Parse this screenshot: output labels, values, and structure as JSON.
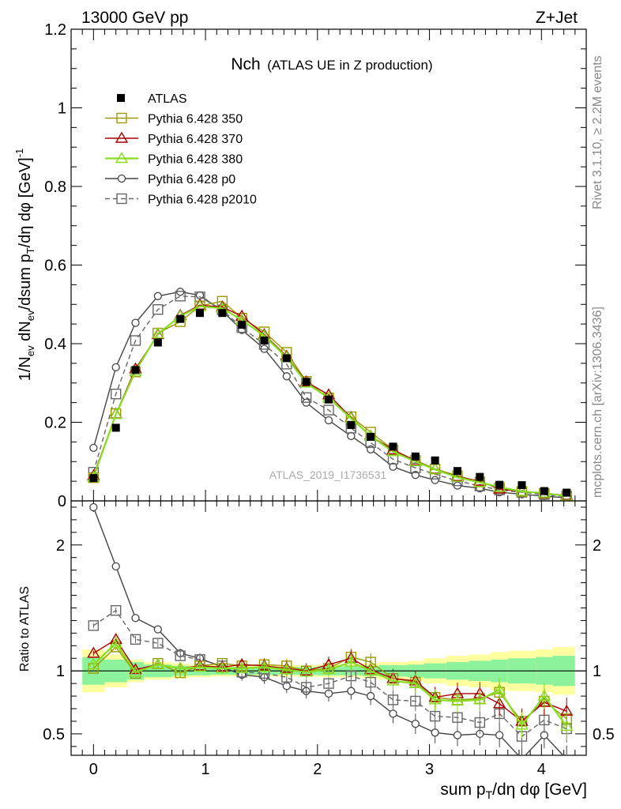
{
  "header": {
    "left": "13000 GeV pp",
    "right": "Z+Jet"
  },
  "side": {
    "rivet": "Rivet 3.1.10, ≥ 2.2M events",
    "mcplots": "mcplots.cern.ch [arXiv:1306.3436]"
  },
  "watermark": "ATLAS_2019_I1736531",
  "chart_data": {
    "type": "line",
    "title": "Nch",
    "subtitle": "(ATLAS UE in Z production)",
    "xlabel": "sum p_T/dη dφ [GeV]",
    "ylabel": "1/N_ev dN_ev/dsum p_T/dη dφ [GeV]^-1",
    "ratio_ylabel": "Ratio to ATLAS",
    "xlim": [
      -0.2,
      4.4
    ],
    "ylim": [
      0,
      1.2
    ],
    "ratio_ylim": [
      0.33,
      2.35
    ],
    "x_ticks": [
      "0",
      "1",
      "2",
      "3",
      "4"
    ],
    "y_ticks": [
      "0",
      "0.2",
      "0.4",
      "0.6",
      "0.8",
      "1",
      "1.2"
    ],
    "ratio_ticks": [
      "0.5",
      "1",
      "2"
    ],
    "legend_position": "top-left",
    "x": [
      0,
      0.2,
      0.375,
      0.575,
      0.775,
      0.95,
      1.15,
      1.325,
      1.525,
      1.725,
      1.9,
      2.1,
      2.3,
      2.475,
      2.675,
      2.875,
      3.05,
      3.25,
      3.45,
      3.625,
      3.825,
      4.025,
      4.225
    ],
    "band_edges": [
      -0.1,
      0.1,
      0.3,
      0.45,
      0.7,
      0.85,
      1.05,
      1.25,
      1.4,
      1.65,
      1.8,
      2.0,
      2.2,
      2.4,
      2.55,
      2.8,
      2.95,
      3.15,
      3.35,
      3.55,
      3.7,
      3.95,
      4.1,
      4.3
    ],
    "band_inner_half": [
      0.11,
      0.09,
      0.07,
      0.05,
      0.04,
      0.035,
      0.03,
      0.03,
      0.03,
      0.03,
      0.03,
      0.035,
      0.035,
      0.04,
      0.045,
      0.05,
      0.06,
      0.07,
      0.08,
      0.09,
      0.1,
      0.11,
      0.12
    ],
    "band_outer_half": [
      0.17,
      0.13,
      0.09,
      0.07,
      0.06,
      0.05,
      0.045,
      0.045,
      0.045,
      0.045,
      0.045,
      0.05,
      0.05,
      0.06,
      0.07,
      0.08,
      0.1,
      0.12,
      0.13,
      0.15,
      0.16,
      0.17,
      0.19
    ],
    "series": [
      {
        "name": "ATLAS",
        "style": "data",
        "color": "#000000",
        "marker": "filled-square",
        "values": [
          0.058,
          0.186,
          0.333,
          0.403,
          0.463,
          0.478,
          0.478,
          0.448,
          0.408,
          0.363,
          0.303,
          0.258,
          0.193,
          0.163,
          0.138,
          0.113,
          0.103,
          0.076,
          0.061,
          0.041,
          0.04,
          0.025,
          0.021
        ]
      },
      {
        "name": "Pythia 6.428 350",
        "style": "solid",
        "color": "#999900",
        "marker": "open-square",
        "values": [
          0.059,
          0.222,
          0.328,
          0.427,
          0.456,
          0.496,
          0.508,
          0.465,
          0.43,
          0.378,
          0.304,
          0.262,
          0.214,
          0.175,
          0.13,
          0.103,
          0.081,
          0.064,
          0.048,
          0.034,
          0.024,
          0.019,
          0.013
        ],
        "ratio": [
          1.02,
          1.19,
          0.98,
          1.06,
          0.985,
          1.04,
          1.06,
          1.04,
          1.05,
          1.04,
          1.0,
          1.02,
          1.11,
          1.07,
          0.94,
          0.91,
          0.79,
          0.77,
          0.78,
          0.83,
          0.6,
          0.76,
          0.62
        ]
      },
      {
        "name": "Pythia 6.428 370",
        "style": "solid",
        "color": "#aa0000",
        "marker": "open-triangle",
        "values": [
          0.064,
          0.221,
          0.336,
          0.423,
          0.472,
          0.498,
          0.493,
          0.47,
          0.423,
          0.368,
          0.303,
          0.27,
          0.212,
          0.165,
          0.13,
          0.102,
          0.081,
          0.062,
          0.05,
          0.03,
          0.024,
          0.019,
          0.014
        ],
        "ratio": [
          1.14,
          1.25,
          1.01,
          1.05,
          1.02,
          1.04,
          1.03,
          1.05,
          1.04,
          1.02,
          1.0,
          1.05,
          1.1,
          1.01,
          0.94,
          0.92,
          0.79,
          0.82,
          0.82,
          0.74,
          0.6,
          0.75,
          0.68
        ]
      },
      {
        "name": "Pythia 6.428 380",
        "style": "solid",
        "color": "#88dd22",
        "marker": "open-triangle",
        "values": [
          0.06,
          0.22,
          0.33,
          0.425,
          0.47,
          0.495,
          0.49,
          0.46,
          0.42,
          0.365,
          0.3,
          0.262,
          0.21,
          0.165,
          0.125,
          0.1,
          0.08,
          0.06,
          0.047,
          0.035,
          0.024,
          0.02,
          0.012
        ],
        "ratio": [
          1.05,
          1.22,
          0.99,
          1.05,
          1.02,
          1.03,
          1.02,
          1.02,
          1.03,
          1.01,
          0.99,
          1.01,
          1.07,
          1.0,
          0.92,
          0.9,
          0.77,
          0.76,
          0.77,
          0.85,
          0.57,
          0.8,
          0.56
        ]
      },
      {
        "name": "Pythia 6.428 p0",
        "style": "solid",
        "color": "#444444",
        "marker": "open-circle",
        "values": [
          0.135,
          0.34,
          0.453,
          0.521,
          0.532,
          0.523,
          0.483,
          0.435,
          0.387,
          0.317,
          0.25,
          0.205,
          0.165,
          0.131,
          0.087,
          0.066,
          0.053,
          0.039,
          0.032,
          0.022,
          0.017,
          0.012,
          0.008
        ],
        "ratio": [
          2.3,
          1.83,
          1.42,
          1.33,
          1.14,
          1.1,
          1.03,
          0.97,
          0.95,
          0.88,
          0.84,
          0.82,
          0.84,
          0.8,
          0.66,
          0.58,
          0.51,
          0.49,
          0.5,
          0.49,
          0.3,
          0.49,
          0.3
        ]
      },
      {
        "name": "Pythia 6.428 p2010",
        "style": "dashed",
        "color": "#666666",
        "marker": "open-square",
        "values": [
          0.073,
          0.272,
          0.408,
          0.487,
          0.521,
          0.519,
          0.486,
          0.441,
          0.398,
          0.348,
          0.263,
          0.231,
          0.185,
          0.148,
          0.106,
          0.084,
          0.068,
          0.051,
          0.038,
          0.028,
          0.022,
          0.016,
          0.011
        ],
        "ratio": [
          1.36,
          1.48,
          1.25,
          1.22,
          1.12,
          1.09,
          1.04,
          0.99,
          0.98,
          0.95,
          0.87,
          0.9,
          0.96,
          0.91,
          0.77,
          0.76,
          0.64,
          0.63,
          0.59,
          0.66,
          0.48,
          0.61,
          0.54
        ]
      }
    ]
  }
}
